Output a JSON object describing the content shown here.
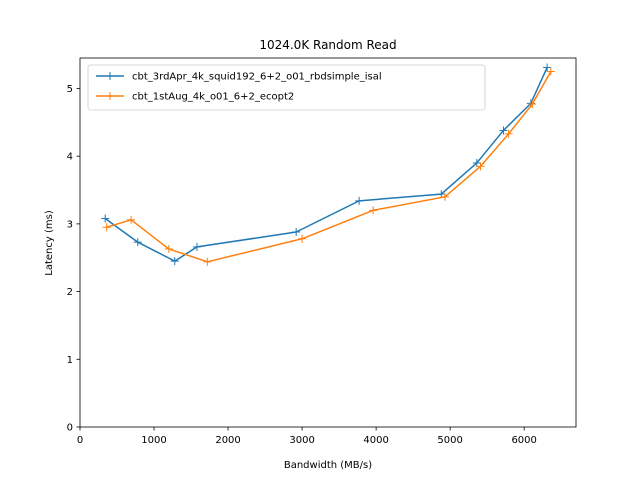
{
  "chart_data": {
    "type": "line",
    "title": "1024.0K  Random Read",
    "xlabel": "Bandwidth (MB/s)",
    "ylabel": "Latency (ms)",
    "xlim": [
      0,
      6700
    ],
    "ylim": [
      0,
      5.45
    ],
    "xticks": [
      0,
      1000,
      2000,
      3000,
      4000,
      5000,
      6000
    ],
    "yticks": [
      0,
      1,
      2,
      3,
      4,
      5
    ],
    "grid": false,
    "legend_position": "top-left",
    "series": [
      {
        "name": "cbt_3rdApr_4k_squid192_6+2_o01_rbdsimple_isal",
        "color": "#1f77b4",
        "marker": "+",
        "x": [
          340,
          780,
          1280,
          1580,
          2920,
          3770,
          4880,
          5360,
          5720,
          6090,
          6310
        ],
        "y": [
          3.08,
          2.73,
          2.45,
          2.66,
          2.88,
          3.34,
          3.44,
          3.9,
          4.38,
          4.78,
          5.31
        ]
      },
      {
        "name": "cbt_1stAug_4k_o01_6+2_ecopt2",
        "color": "#ff7f0e",
        "marker": "+",
        "x": [
          360,
          690,
          1200,
          1720,
          3000,
          3960,
          4930,
          5410,
          5790,
          6110,
          6360
        ],
        "y": [
          2.95,
          3.06,
          2.63,
          2.44,
          2.78,
          3.2,
          3.4,
          3.85,
          4.33,
          4.77,
          5.25
        ]
      }
    ]
  }
}
